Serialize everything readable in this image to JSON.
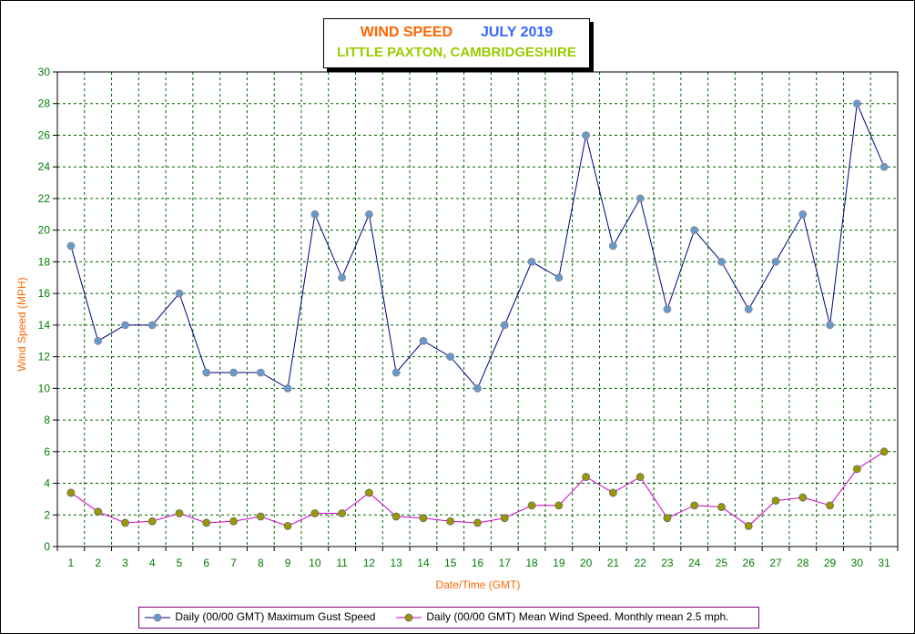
{
  "title": {
    "part1": "WIND SPEED",
    "part2": "JULY 2019",
    "subtitle": "LITTLE PAXTON, CAMBRIDGESHIRE"
  },
  "colors": {
    "title1": "#ff6600",
    "title2": "#3366ff",
    "subtitle": "#99cc00",
    "axis_label": "#ff6600",
    "tick_label": "#008000",
    "grid": "#006400",
    "gust_line": "#000080",
    "gust_marker": "#6699cc",
    "mean_line": "#cc00cc",
    "mean_marker": "#999900",
    "legend_border": "#800080"
  },
  "chart_data": {
    "type": "line",
    "xlabel": "Date/Time (GMT)",
    "ylabel": "Wind Speed (MPH)",
    "ylim": [
      0,
      30
    ],
    "ytick_step": 2,
    "grid": true,
    "legend_position": "bottom",
    "x": [
      1,
      2,
      3,
      4,
      5,
      6,
      7,
      8,
      9,
      10,
      11,
      12,
      13,
      14,
      15,
      16,
      17,
      18,
      19,
      20,
      21,
      22,
      23,
      24,
      25,
      26,
      27,
      28,
      29,
      30,
      31
    ],
    "series": [
      {
        "name": "Daily (00/00 GMT) Maximum Gust Speed",
        "values": [
          19,
          13,
          14,
          14,
          16,
          11,
          11,
          11,
          10,
          21,
          17,
          21,
          11,
          13,
          12,
          10,
          14,
          18,
          17,
          26,
          19,
          22,
          15,
          20,
          18,
          15,
          18,
          21,
          14,
          28,
          24
        ]
      },
      {
        "name": "Daily (00/00 GMT) Mean Wind Speed. Monthly mean 2.5 mph.",
        "values": [
          3.4,
          2.2,
          1.5,
          1.6,
          2.1,
          1.5,
          1.6,
          1.9,
          1.3,
          2.1,
          2.1,
          3.4,
          1.9,
          1.8,
          1.6,
          1.5,
          1.8,
          2.6,
          2.6,
          4.4,
          3.4,
          4.4,
          1.8,
          2.6,
          2.5,
          1.3,
          2.9,
          3.1,
          2.6,
          4.9,
          6.0
        ]
      }
    ]
  }
}
